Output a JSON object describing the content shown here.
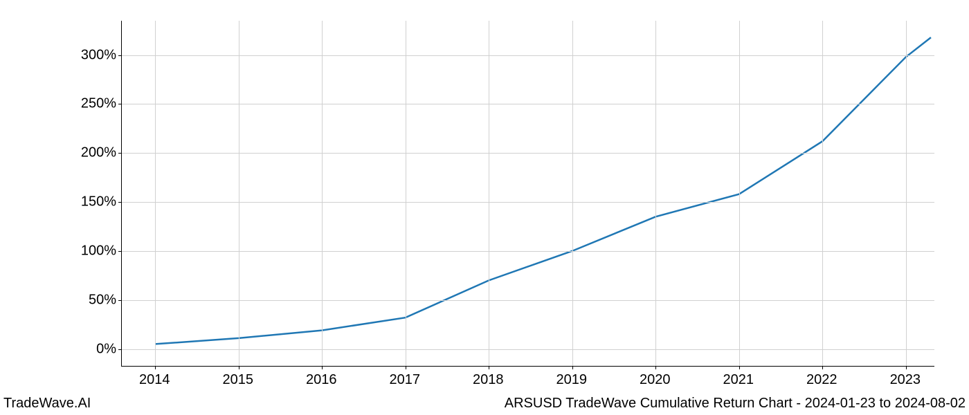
{
  "chart": {
    "type": "line",
    "background_color": "#ffffff",
    "grid_color": "#d0d0d0",
    "axis_color": "#000000",
    "line_color": "#1f77b4",
    "line_width": 2.5,
    "tick_fontsize": 20,
    "footer_fontsize": 20,
    "x": {
      "ticks": [
        2014,
        2015,
        2016,
        2017,
        2018,
        2019,
        2020,
        2021,
        2022,
        2023
      ],
      "labels": [
        "2014",
        "2015",
        "2016",
        "2017",
        "2018",
        "2019",
        "2020",
        "2021",
        "2022",
        "2023"
      ],
      "min": 2013.6,
      "max": 2023.35
    },
    "y": {
      "ticks": [
        0,
        50,
        100,
        150,
        200,
        250,
        300
      ],
      "labels": [
        "0%",
        "50%",
        "100%",
        "150%",
        "200%",
        "250%",
        "300%"
      ],
      "min": -18,
      "max": 335
    },
    "data": {
      "x": [
        2014,
        2015,
        2016,
        2017,
        2018,
        2019,
        2020,
        2021,
        2022,
        2023,
        2023.3
      ],
      "y": [
        5,
        11,
        19,
        32,
        70,
        100,
        135,
        158,
        212,
        298,
        318
      ]
    }
  },
  "footer": {
    "left": "TradeWave.AI",
    "right": "ARSUSD TradeWave Cumulative Return Chart - 2024-01-23 to 2024-08-02"
  }
}
